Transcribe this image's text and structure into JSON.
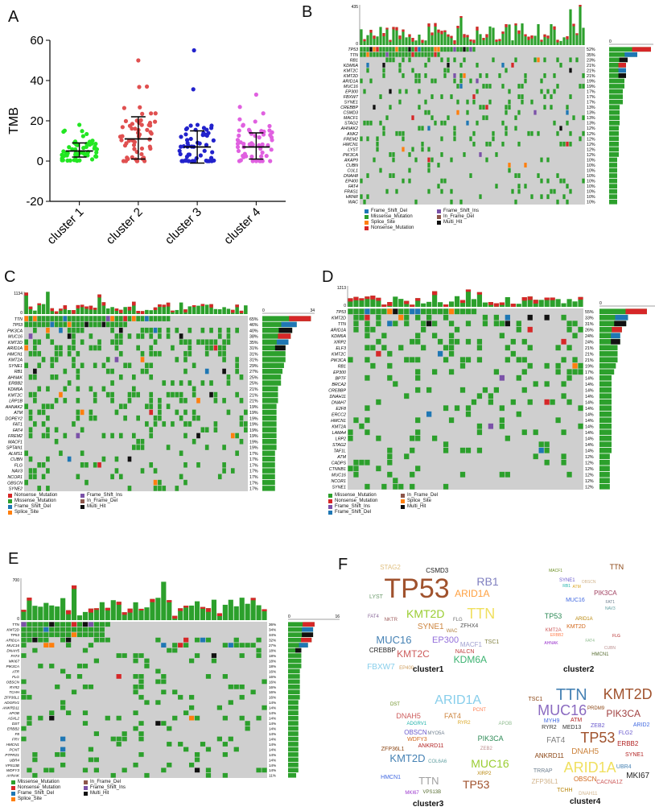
{
  "panels": {
    "a": "A",
    "b": "B",
    "c": "C",
    "d": "D",
    "e": "E",
    "f": "F"
  },
  "colors": {
    "missense": "#2ca02c",
    "frame_shift_del": "#1f77b4",
    "frame_shift_ins": "#7b52a8",
    "nonsense": "#d62728",
    "splice": "#ff7f0e",
    "in_frame_del": "#8c564b",
    "multi_hit": "#111111",
    "none": "#cfcfcf"
  },
  "panelA": {
    "chart_data": {
      "type": "scatter",
      "ylabel": "TMB",
      "ylim": [
        -20,
        60
      ],
      "yticks": [
        -20,
        0,
        20,
        40,
        60
      ],
      "categories": [
        "cluster 1",
        "cluster 2",
        "cluster 3",
        "cluster 4"
      ],
      "series": [
        {
          "name": "cluster 1",
          "color": "#22e622",
          "median": 5,
          "sd_low": 2,
          "sd_high": 9,
          "max": 18
        },
        {
          "name": "cluster 2",
          "color": "#e05050",
          "median": 11,
          "sd_low": 1,
          "sd_high": 22,
          "max": 50
        },
        {
          "name": "cluster 3",
          "color": "#2222cc",
          "median": 7,
          "sd_low": -1,
          "sd_high": 15,
          "max": 55
        },
        {
          "name": "cluster 4",
          "color": "#e060e0",
          "median": 7,
          "sd_low": 1,
          "sd_high": 14,
          "max": 33
        }
      ]
    }
  },
  "panelB": {
    "top_max": "435",
    "top_min": "0",
    "right_min": "0",
    "right_max": "27",
    "cols": 70,
    "genes": [
      "TP53",
      "TTN",
      "RB1",
      "KDM6A",
      "KMT2C",
      "KMT2D",
      "ARID1A",
      "MUC16",
      "EP300",
      "FBXW7",
      "SYNE1",
      "CREBBP",
      "CSMD3",
      "MACF1",
      "STAG2",
      "AHNAK2",
      "ANK2",
      "FREM2",
      "HMCN1",
      "LYST",
      "PIK3CA",
      "AKAP9",
      "CUBN",
      "CUL1",
      "DNAH8",
      "EP400",
      "FAT4",
      "FRAS1",
      "HRNR",
      "WAC"
    ],
    "pcts": [
      "52%",
      "35%",
      "23%",
      "21%",
      "21%",
      "21%",
      "19%",
      "19%",
      "17%",
      "17%",
      "17%",
      "13%",
      "13%",
      "13%",
      "13%",
      "12%",
      "12%",
      "12%",
      "12%",
      "12%",
      "12%",
      "10%",
      "10%",
      "10%",
      "10%",
      "10%",
      "10%",
      "10%",
      "10%",
      "10%"
    ],
    "legend": [
      "Frame_Shift_Del",
      "Frame_Shift_Ins",
      "Missense_Mutation",
      "In_Frame_Del",
      "Splice_Site",
      "Multi_Hit",
      "Nonsense_Mutation"
    ]
  },
  "panelC": {
    "top_max": "1134",
    "top_min": "0",
    "right_min": "0",
    "right_max": "34",
    "cols": 52,
    "genes": [
      "TTN",
      "TP53",
      "PIK3CA",
      "MUC16",
      "KMT2D",
      "ARID1A",
      "HMCN1",
      "KMT2A",
      "SYNE1",
      "RB1",
      "AHNAK",
      "ERBB2",
      "KDM6A",
      "KMT2C",
      "LRP1B",
      "AHNAK2",
      "ATM",
      "DOPEY2",
      "FAT1",
      "FAT4",
      "FREM2",
      "MACF1",
      "SPTAN1",
      "ALMS1",
      "CUBN",
      "FLG",
      "NAV3",
      "NCOR1",
      "OBSCN",
      "SYNE2"
    ],
    "pcts": [
      "65%",
      "46%",
      "40%",
      "38%",
      "35%",
      "31%",
      "31%",
      "31%",
      "29%",
      "27%",
      "25%",
      "25%",
      "21%",
      "21%",
      "21%",
      "19%",
      "19%",
      "19%",
      "19%",
      "19%",
      "19%",
      "19%",
      "19%",
      "17%",
      "17%",
      "17%",
      "17%",
      "17%",
      "17%",
      "17%"
    ],
    "legend": [
      "Nonsense_Mutation",
      "Frame_Shift_Ins",
      "Missense_Mutation",
      "In_Frame_Del",
      "Frame_Shift_Del",
      "Multi_Hit",
      "Splice_Site"
    ]
  },
  "panelD": {
    "top_max": "1213",
    "top_min": "0",
    "right_min": "0",
    "right_max": "23",
    "cols": 42,
    "genes": [
      "TP53",
      "KMT2D",
      "TTN",
      "ARID1A",
      "KDM6A",
      "XIRP2",
      "ELF3",
      "KMT2C",
      "PIK3CA",
      "RB1",
      "EP300",
      "BPTF",
      "BRCA2",
      "CREBBP",
      "DNAH11",
      "DNAH7",
      "E2F8",
      "ERCC2",
      "HMCN1",
      "KMT2A",
      "LAMA4",
      "LRP2",
      "STAG2",
      "TAF1L",
      "ATM",
      "CADPS",
      "CTNNB1",
      "MUC16",
      "NCOR1",
      "SYNE1"
    ],
    "pcts": [
      "55%",
      "33%",
      "31%",
      "26%",
      "24%",
      "24%",
      "21%",
      "21%",
      "21%",
      "19%",
      "17%",
      "14%",
      "14%",
      "14%",
      "14%",
      "14%",
      "14%",
      "14%",
      "14%",
      "14%",
      "14%",
      "14%",
      "14%",
      "14%",
      "12%",
      "12%",
      "12%",
      "12%",
      "12%",
      "12%"
    ],
    "legend": [
      "Missense_Mutation",
      "In_Frame_Del",
      "Nonsense_Mutation",
      "Splice_Site",
      "Frame_Shift_Ins",
      "Multi_Hit",
      "Frame_Shift_Del"
    ]
  },
  "panelE": {
    "top_max": "700",
    "top_min": "0",
    "right_min": "0",
    "right_max": "16",
    "cols": 44,
    "genes": [
      "TTN",
      "KMT2D",
      "TP53",
      "ARID1A",
      "MUC16",
      "DNAH5",
      "FAT4",
      "MKI67",
      "PIK3CA",
      "ATR",
      "FLG",
      "OBSCN",
      "RYR2",
      "TCHH",
      "ZFP36L1",
      "ADGRV1",
      "ANKRD11",
      "APOB",
      "ASXL2",
      "DST",
      "ERBB2",
      "F8",
      "FRY",
      "HMCN1",
      "PCNT",
      "PTPRZ1",
      "UBR4",
      "VPS13B",
      "WDFY3",
      "AHNAK"
    ],
    "pcts": [
      "36%",
      "34%",
      "34%",
      "32%",
      "27%",
      "18%",
      "18%",
      "18%",
      "18%",
      "16%",
      "16%",
      "16%",
      "16%",
      "16%",
      "16%",
      "14%",
      "14%",
      "14%",
      "14%",
      "14%",
      "14%",
      "14%",
      "14%",
      "14%",
      "14%",
      "14%",
      "14%",
      "14%",
      "14%",
      "11%"
    ],
    "legend": [
      "Missense_Mutation",
      "In_Frame_Del",
      "Nonsense_Mutation",
      "Frame_Shift_Ins",
      "Frame_Shift_Del",
      "Multi_Hit",
      "Splice_Site"
    ]
  },
  "panelF": {
    "clusters": [
      {
        "title": "cluster1",
        "words": [
          {
            "t": "TP53",
            "s": 34,
            "c": "#a0522d"
          },
          {
            "t": "TTN",
            "s": 18,
            "c": "#f0e060"
          },
          {
            "t": "KMT2D",
            "s": 14,
            "c": "#9acd32"
          },
          {
            "t": "KDM6A",
            "s": 12,
            "c": "#3cb371"
          },
          {
            "t": "MUC16",
            "s": 13,
            "c": "#4682b4"
          },
          {
            "t": "KMT2C",
            "s": 12,
            "c": "#cd5c5c"
          },
          {
            "t": "RB1",
            "s": 14,
            "c": "#8080c0"
          },
          {
            "t": "ARID1A",
            "s": 12,
            "c": "#ffa040"
          },
          {
            "t": "SYNE1",
            "s": 10,
            "c": "#cd853f"
          },
          {
            "t": "EP300",
            "s": 11,
            "c": "#9370db"
          },
          {
            "t": "FBXW7",
            "s": 10,
            "c": "#87ceeb"
          },
          {
            "t": "CREBBP",
            "s": 8,
            "c": "#222222"
          },
          {
            "t": "CSMD3",
            "s": 8,
            "c": "#222222"
          },
          {
            "t": "MACF1",
            "s": 8,
            "c": "#a0a0d0"
          },
          {
            "t": "STAG2",
            "s": 8,
            "c": "#e0c080"
          },
          {
            "t": "ZFHX4",
            "s": 7,
            "c": "#555555"
          },
          {
            "t": "NALCN",
            "s": 7,
            "c": "#c04040"
          },
          {
            "t": "LYST",
            "s": 7,
            "c": "#6a9a6a"
          },
          {
            "t": "TSC1",
            "s": 7,
            "c": "#808040"
          },
          {
            "t": "FAT4",
            "s": 6,
            "c": "#8a6a9a"
          },
          {
            "t": "NKTR",
            "s": 6,
            "c": "#a06060"
          },
          {
            "t": "FLG",
            "s": 6,
            "c": "#707070"
          },
          {
            "t": "WAC",
            "s": 6,
            "c": "#b08040"
          },
          {
            "t": "EP400",
            "s": 6,
            "c": "#d0a060"
          }
        ]
      },
      {
        "title": "cluster2",
        "words": [
          {
            "t": "TTN",
            "s": 9,
            "c": "#8b4513"
          },
          {
            "t": "TP53",
            "s": 9,
            "c": "#2e8b57"
          },
          {
            "t": "KMT2D",
            "s": 7,
            "c": "#d2691e"
          },
          {
            "t": "PIK3CA",
            "s": 8,
            "c": "#a04060"
          },
          {
            "t": "MUC16",
            "s": 7,
            "c": "#4169e1"
          },
          {
            "t": "ARID1A",
            "s": 6,
            "c": "#b8860b"
          },
          {
            "t": "HMCN1",
            "s": 6,
            "c": "#556b2f"
          },
          {
            "t": "SYNE1",
            "s": 6,
            "c": "#6a5acd"
          },
          {
            "t": "KMT2A",
            "s": 6,
            "c": "#cd5c5c"
          },
          {
            "t": "RB1",
            "s": 5,
            "c": "#20b2aa"
          },
          {
            "t": "AHNAK",
            "s": 5,
            "c": "#9932cc"
          },
          {
            "t": "ERBB2",
            "s": 5,
            "c": "#ff7f50"
          },
          {
            "t": "FAT1",
            "s": 5,
            "c": "#708090"
          },
          {
            "t": "FAT4",
            "s": 5,
            "c": "#8fbc8f"
          },
          {
            "t": "ATM",
            "s": 5,
            "c": "#daa520"
          },
          {
            "t": "FLG",
            "s": 5,
            "c": "#b22222"
          },
          {
            "t": "NAV3",
            "s": 5,
            "c": "#5f9ea0"
          },
          {
            "t": "OBSCN",
            "s": 5,
            "c": "#d2b48c"
          },
          {
            "t": "CUBN",
            "s": 5,
            "c": "#bc8f8f"
          },
          {
            "t": "MACF1",
            "s": 5,
            "c": "#6b8e23"
          }
        ]
      },
      {
        "title": "cluster3",
        "words": [
          {
            "t": "TP53",
            "s": 14,
            "c": "#a0522d"
          },
          {
            "t": "KMT2D",
            "s": 13,
            "c": "#4682b4"
          },
          {
            "t": "TTN",
            "s": 13,
            "c": "#a0a0a0"
          },
          {
            "t": "MUC16",
            "s": 14,
            "c": "#9acd32"
          },
          {
            "t": "ARID1A",
            "s": 16,
            "c": "#87ceeb"
          },
          {
            "t": "PIK3CA",
            "s": 9,
            "c": "#2e8b57"
          },
          {
            "t": "DNAH5",
            "s": 9,
            "c": "#cd5c5c"
          },
          {
            "t": "FAT4",
            "s": 9,
            "c": "#cd853f"
          },
          {
            "t": "OBSCN",
            "s": 8,
            "c": "#6a5acd"
          },
          {
            "t": "ZFP36L1",
            "s": 7,
            "c": "#8b4513"
          },
          {
            "t": "WDFY3",
            "s": 7,
            "c": "#d2691e"
          },
          {
            "t": "HMCN1",
            "s": 7,
            "c": "#4169e1"
          },
          {
            "t": "ANKRD11",
            "s": 7,
            "c": "#b22222"
          },
          {
            "t": "VPS13B",
            "s": 6,
            "c": "#556b2f"
          },
          {
            "t": "XIRP2",
            "s": 6,
            "c": "#b8860b"
          },
          {
            "t": "ADGRV1",
            "s": 6,
            "c": "#20b2aa"
          },
          {
            "t": "MYO5A",
            "s": 6,
            "c": "#708090"
          },
          {
            "t": "MKI67",
            "s": 6,
            "c": "#9932cc"
          },
          {
            "t": "PCNT",
            "s": 6,
            "c": "#ff7f50"
          },
          {
            "t": "APOB",
            "s": 6,
            "c": "#8fbc8f"
          },
          {
            "t": "RYR2",
            "s": 6,
            "c": "#daa520"
          },
          {
            "t": "COL6A6",
            "s": 6,
            "c": "#5f9ea0"
          },
          {
            "t": "ZEB2",
            "s": 6,
            "c": "#bc8f8f"
          },
          {
            "t": "DST",
            "s": 6,
            "c": "#6b8e23"
          }
        ]
      },
      {
        "title": "cluster4",
        "words": [
          {
            "t": "ARID1A",
            "s": 18,
            "c": "#f0e060"
          },
          {
            "t": "TTN",
            "s": 20,
            "c": "#4682b4"
          },
          {
            "t": "KMT2D",
            "s": 18,
            "c": "#a0522d"
          },
          {
            "t": "MUC16",
            "s": 18,
            "c": "#8a6ac0"
          },
          {
            "t": "TP53",
            "s": 18,
            "c": "#a0522d"
          },
          {
            "t": "PIK3CA",
            "s": 12,
            "c": "#a04040"
          },
          {
            "t": "DNAH5",
            "s": 10,
            "c": "#cd853f"
          },
          {
            "t": "FAT4",
            "s": 10,
            "c": "#808080"
          },
          {
            "t": "MKI67",
            "s": 10,
            "c": "#222222"
          },
          {
            "t": "ZFP36L1",
            "s": 8,
            "c": "#d2b48c"
          },
          {
            "t": "ANKRD11",
            "s": 8,
            "c": "#8b4513"
          },
          {
            "t": "ERBB2",
            "s": 8,
            "c": "#b22222"
          },
          {
            "t": "CACNA1Z",
            "s": 7,
            "c": "#cd5c5c"
          },
          {
            "t": "OBSCN",
            "s": 8,
            "c": "#d2691e"
          },
          {
            "t": "TCHH",
            "s": 7,
            "c": "#b8860b"
          },
          {
            "t": "FLG2",
            "s": 7,
            "c": "#6a5acd"
          },
          {
            "t": "MED13",
            "s": 7,
            "c": "#333333"
          },
          {
            "t": "RYR2",
            "s": 7,
            "c": "#333333"
          },
          {
            "t": "ATM",
            "s": 7,
            "c": "#b22222"
          },
          {
            "t": "TSC1",
            "s": 7,
            "c": "#8b4513"
          },
          {
            "t": "ZEB2",
            "s": 7,
            "c": "#6a5acd"
          },
          {
            "t": "MYH9",
            "s": 7,
            "c": "#4169e1"
          },
          {
            "t": "UBR4",
            "s": 7,
            "c": "#4682b4"
          },
          {
            "t": "TRRAP",
            "s": 7,
            "c": "#708090"
          },
          {
            "t": "ARID2",
            "s": 7,
            "c": "#4169e1"
          },
          {
            "t": "SYNE1",
            "s": 7,
            "c": "#b22222"
          },
          {
            "t": "DNAH11",
            "s": 6,
            "c": "#d2b48c"
          },
          {
            "t": "PRDM9",
            "s": 6,
            "c": "#8b4513"
          }
        ]
      }
    ]
  }
}
